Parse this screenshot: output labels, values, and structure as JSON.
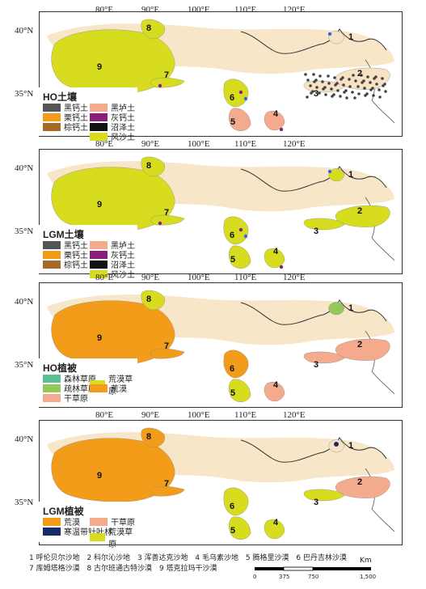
{
  "lon_labels": [
    "80°E",
    "90°E",
    "100°E",
    "110°E",
    "120°E"
  ],
  "lat_labels": [
    "40°N",
    "35°N"
  ],
  "colors": {
    "base_land": "#f7e3c3",
    "black_calcic": "#555555",
    "chestnut": "#f39c1a",
    "brown_calcic": "#a56a2a",
    "black_gleyic": "#f4aa8c",
    "grey_calcic": "#8a1f7a",
    "bog": "#111111",
    "aeolian": "#d7dc1e",
    "forest_steppe": "#5cbf91",
    "sparse_forest_steppe": "#93c95a",
    "desert": "#f39c1a",
    "dry_steppe": "#f4aa8c",
    "desert_steppe": "#d7dc1e",
    "boreal_conifer": "#1a2a66",
    "sample_blue": "#2c6fcf",
    "sample_purple": "#8a1f7a",
    "sample_grey": "#444444"
  },
  "panels": [
    {
      "title": "HO土壤",
      "legend": [
        {
          "label": "黑钙土",
          "color": "#555555"
        },
        {
          "label": "栗钙土",
          "color": "#f39c1a"
        },
        {
          "label": "棕钙土",
          "color": "#a56a2a"
        },
        {
          "label": "黑垆土",
          "color": "#f4aa8c"
        },
        {
          "label": "灰钙土",
          "color": "#8a1f7a"
        },
        {
          "label": "沼泽土",
          "color": "#111111"
        },
        {
          "label": "风沙土",
          "color": "#d7dc1e"
        }
      ]
    },
    {
      "title": "LGM土壤",
      "legend": [
        {
          "label": "黑钙土",
          "color": "#555555"
        },
        {
          "label": "栗钙土",
          "color": "#f39c1a"
        },
        {
          "label": "棕钙土",
          "color": "#a56a2a"
        },
        {
          "label": "黑垆土",
          "color": "#f4aa8c"
        },
        {
          "label": "灰钙土",
          "color": "#8a1f7a"
        },
        {
          "label": "沼泽土",
          "color": "#111111"
        },
        {
          "label": "风沙土",
          "color": "#d7dc1e"
        }
      ]
    },
    {
      "title": "HO植被",
      "legend": [
        {
          "label": "森林草原",
          "color": "#5cbf91"
        },
        {
          "label": "疏林草原",
          "color": "#93c95a"
        },
        {
          "label": "干草原",
          "color": "#f4aa8c"
        },
        {
          "label": "荒漠草原",
          "color": "#d7dc1e"
        },
        {
          "label": "荒漠",
          "color": "#f39c1a"
        }
      ]
    },
    {
      "title": "LGM植被",
      "legend": [
        {
          "label": "荒漠",
          "color": "#f39c1a"
        },
        {
          "label": "寒温带针叶林",
          "color": "#1a2a66"
        },
        {
          "label": "干草原",
          "color": "#f4aa8c"
        },
        {
          "label": "荒漠草原",
          "color": "#d7dc1e"
        }
      ]
    }
  ],
  "region_numbers": [
    "1",
    "2",
    "3",
    "4",
    "5",
    "6",
    "7",
    "8",
    "9"
  ],
  "footer": {
    "line1": [
      "1 呼伦贝尔沙地",
      "2 科尔沁沙地",
      "3 浑善达克沙地",
      "4 毛乌素沙地",
      "5 腾格里沙漠",
      "6 巴丹吉林沙漠"
    ],
    "line2": [
      "7 库姆塔格沙漠",
      "8 古尔班通古特沙漠",
      "9 塔克拉玛干沙漠"
    ]
  },
  "scale": {
    "ticks": [
      "0",
      "375",
      "750",
      "1,500"
    ],
    "unit": "Km"
  }
}
